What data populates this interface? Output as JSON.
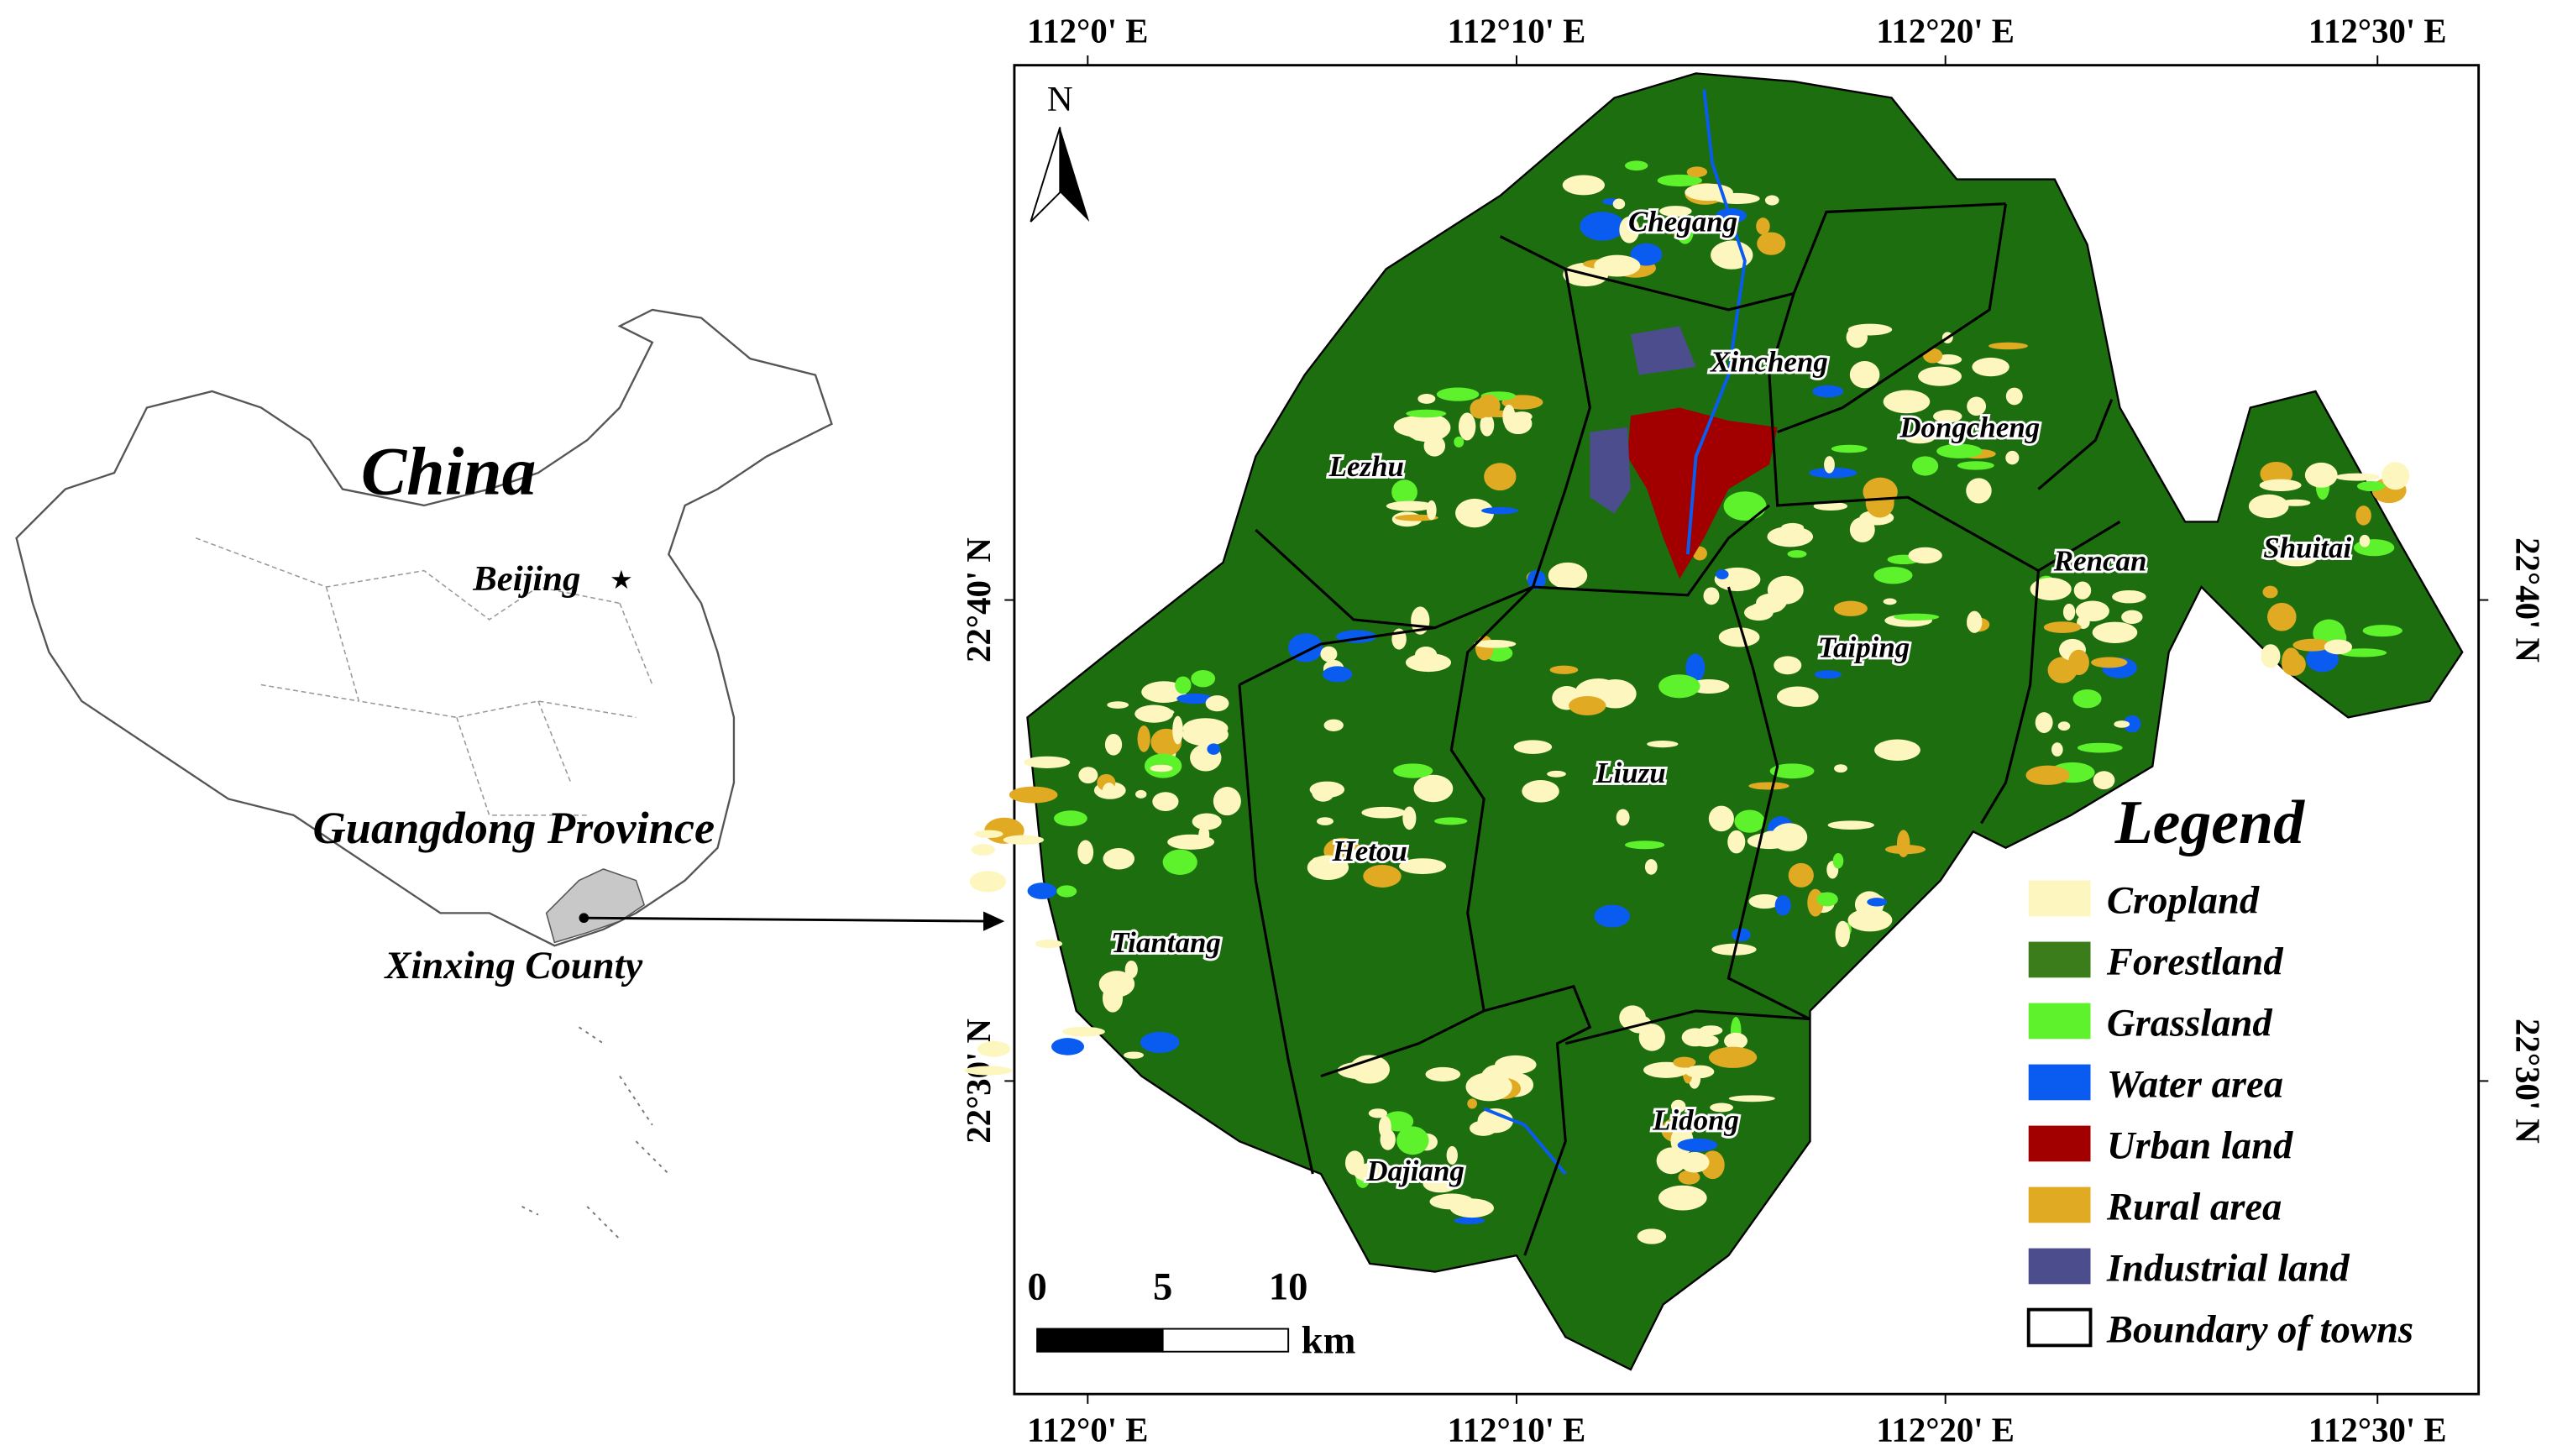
{
  "inset": {
    "country": "China",
    "capital": "Beijing",
    "province": "Guangdong Province",
    "county": "Xinxing County"
  },
  "map": {
    "north": "N",
    "top_lon_labels": [
      "112°0' E",
      "112°10' E",
      "112°20' E",
      "112°30' E"
    ],
    "bottom_lon_labels": [
      "112°0' E",
      "112°10' E",
      "112°20' E",
      "112°30' E"
    ],
    "left_lat_labels": [
      "22°40' N",
      "22°30' N"
    ],
    "right_lat_labels": [
      "22°40' N",
      "22°30' N"
    ],
    "towns": [
      "Chegang",
      "Xincheng",
      "Dongcheng",
      "Lezhu",
      "Rencan",
      "Shuitai",
      "Taiping",
      "Liuzu",
      "Hetou",
      "Tiantang",
      "Lidong",
      "Dajiang"
    ],
    "scale_bar": {
      "ticks": [
        0,
        5,
        10
      ],
      "unit": "km"
    }
  },
  "legend": {
    "title": "Legend",
    "items": [
      {
        "label": "Cropland",
        "color": "#fdf7bf"
      },
      {
        "label": "Forestland",
        "color": "#3a7d1a"
      },
      {
        "label": "Grassland",
        "color": "#5df22c"
      },
      {
        "label": "Water area",
        "color": "#0a5cf0"
      },
      {
        "label": "Urban land",
        "color": "#a20000"
      },
      {
        "label": "Rural area",
        "color": "#e0aa22"
      },
      {
        "label": "Industrial land",
        "color": "#4b4d8c"
      },
      {
        "label": "Boundary of towns",
        "color": "#ffffff"
      }
    ]
  }
}
